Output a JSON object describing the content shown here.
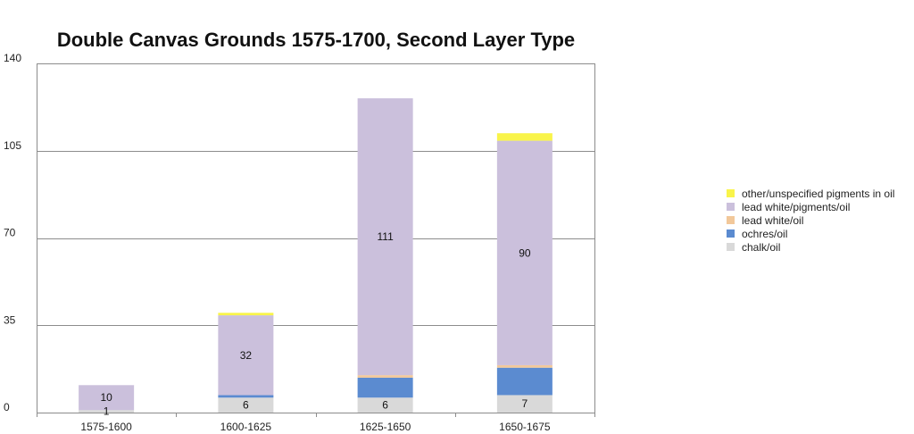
{
  "chart_data": {
    "type": "bar",
    "stacked": true,
    "title": "Double Canvas Grounds 1575-1700, Second Layer Type",
    "categories": [
      "1575-1600",
      "1600-1625",
      "1625-1650",
      "1650-1675"
    ],
    "ylim": [
      0,
      140
    ],
    "yticks": [
      0,
      35,
      70,
      105,
      140
    ],
    "grid": true,
    "legend_position": "right",
    "series": [
      {
        "name": "chalk/oil",
        "color": "#d9d9d9",
        "values": [
          1,
          6,
          6,
          7
        ],
        "labels": [
          "1",
          "6",
          "6",
          "7"
        ]
      },
      {
        "name": "ochres/oil",
        "color": "#5b8bd0",
        "values": [
          0,
          1,
          8,
          11
        ],
        "labels": [
          "",
          "",
          "",
          ""
        ]
      },
      {
        "name": "lead white/oil",
        "color": "#f2c89a",
        "values": [
          0,
          0,
          1,
          1
        ],
        "labels": [
          "",
          "",
          "",
          ""
        ]
      },
      {
        "name": "lead white/pigments/oil",
        "color": "#cbc0dc",
        "values": [
          10,
          32,
          111,
          90
        ],
        "labels": [
          "10",
          "32",
          "111",
          "90"
        ]
      },
      {
        "name": "other/unspecified pigments in oil",
        "color": "#f9f44a",
        "values": [
          0,
          1,
          0,
          3
        ],
        "labels": [
          "",
          "",
          "",
          ""
        ]
      }
    ]
  }
}
